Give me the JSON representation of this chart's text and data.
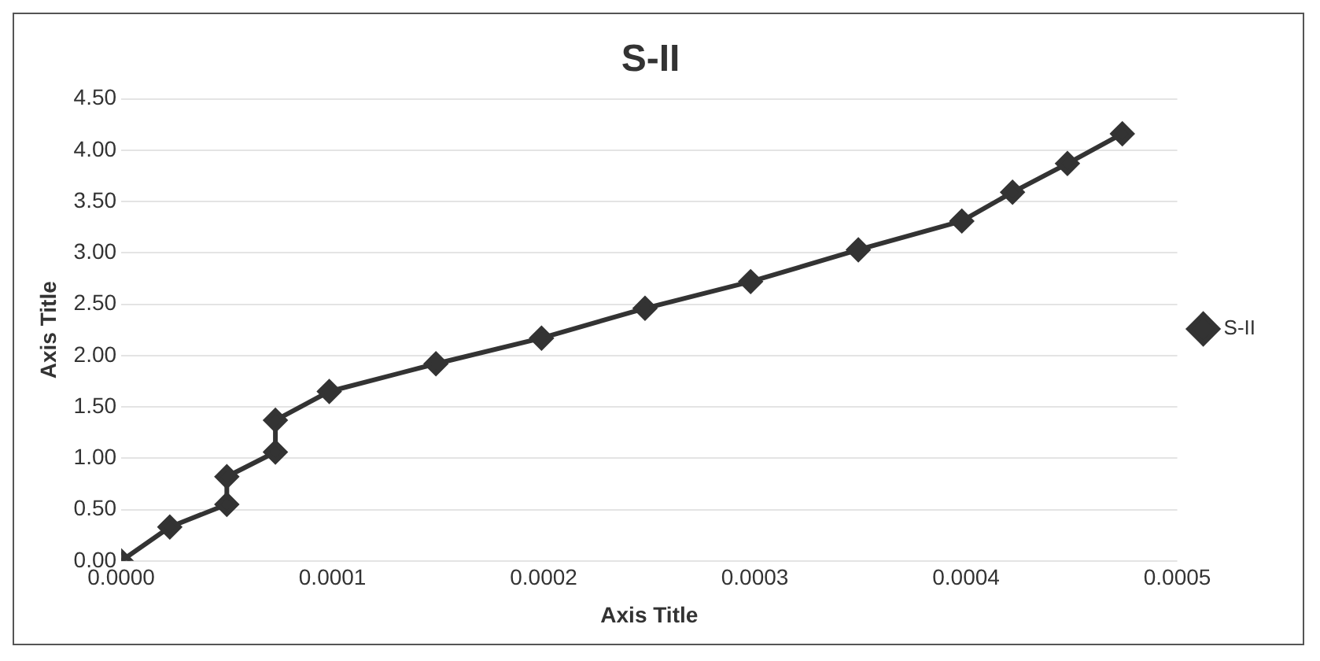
{
  "chart_data": {
    "type": "line",
    "title": "S-II",
    "xlabel": "Axis Title",
    "ylabel": "Axis Title",
    "x": [
      0,
      2.3e-05,
      5e-05,
      5e-05,
      7.3e-05,
      7.3e-05,
      9.85e-05,
      0.000149,
      0.000199,
      0.000248,
      0.000298,
      0.000349,
      0.000398,
      0.000422,
      0.000448,
      0.000474
    ],
    "series": [
      {
        "name": "S-II",
        "color": "#333333",
        "values": [
          0,
          0.33,
          0.55,
          0.82,
          1.06,
          1.37,
          1.65,
          1.92,
          2.17,
          2.46,
          2.72,
          3.03,
          3.31,
          3.59,
          3.87,
          4.16
        ]
      }
    ],
    "xlim": [
      0,
      0.0005
    ],
    "xticks": [
      {
        "value": 0,
        "label": "0.0000"
      },
      {
        "value": 0.0001,
        "label": "0.0001"
      },
      {
        "value": 0.0002,
        "label": "0.0002"
      },
      {
        "value": 0.0003,
        "label": "0.0003"
      },
      {
        "value": 0.0004,
        "label": "0.0004"
      },
      {
        "value": 0.0005,
        "label": "0.0005"
      }
    ],
    "ylim": [
      0,
      4.5
    ],
    "yticks": [
      {
        "value": 0,
        "label": "0.00"
      },
      {
        "value": 0.5,
        "label": "0.50"
      },
      {
        "value": 1,
        "label": "1.00"
      },
      {
        "value": 1.5,
        "label": "1.50"
      },
      {
        "value": 2,
        "label": "2.00"
      },
      {
        "value": 2.5,
        "label": "2.50"
      },
      {
        "value": 3,
        "label": "3.00"
      },
      {
        "value": 3.5,
        "label": "3.50"
      },
      {
        "value": 4,
        "label": "4.00"
      },
      {
        "value": 4.5,
        "label": "4.50"
      }
    ],
    "grid": "y",
    "legend": "right",
    "marker": "diamond",
    "line_style": "solid"
  }
}
